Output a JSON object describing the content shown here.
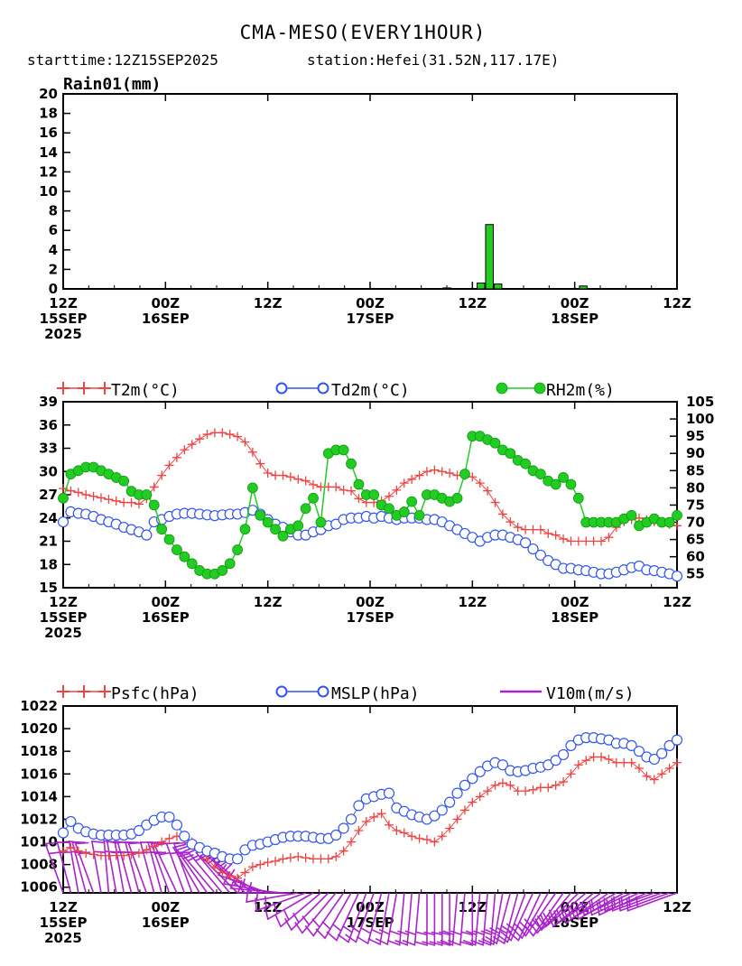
{
  "header": {
    "title": "CMA-MESO(EVERY1HOUR)",
    "starttime": "starttime:12Z15SEP2025",
    "station": "station:Hefei(31.52N,117.17E)"
  },
  "colors": {
    "rain": "#22cc22",
    "t2m": "#ee4444",
    "td2m": "#3355ee",
    "rh2m": "#22cc22",
    "psfc": "#ee4444",
    "mslp": "#3355ee",
    "wind": "#aa22cc"
  },
  "x_ticks": [
    {
      "hour": 0,
      "l1": "12Z",
      "l2": "15SEP",
      "l3": "2025"
    },
    {
      "hour": 12,
      "l1": "00Z",
      "l2": "16SEP",
      "l3": ""
    },
    {
      "hour": 24,
      "l1": "12Z",
      "l2": "",
      "l3": ""
    },
    {
      "hour": 36,
      "l1": "00Z",
      "l2": "17SEP",
      "l3": ""
    },
    {
      "hour": 48,
      "l1": "12Z",
      "l2": "",
      "l3": ""
    },
    {
      "hour": 60,
      "l1": "00Z",
      "l2": "18SEP",
      "l3": ""
    },
    {
      "hour": 72,
      "l1": "12Z",
      "l2": "",
      "l3": ""
    }
  ],
  "chart_data": [
    {
      "type": "bar",
      "title": "Rain01(mm)",
      "ylabel": "Rain01(mm)",
      "x_units": "hours since 12Z15SEP2025",
      "xlim": [
        0,
        72
      ],
      "ylim": [
        0,
        20
      ],
      "yticks": [
        0,
        2,
        4,
        6,
        8,
        10,
        12,
        14,
        16,
        18,
        20
      ],
      "x": [
        45,
        49,
        50,
        51,
        61
      ],
      "values": [
        0.1,
        0.6,
        6.6,
        0.5,
        0.3
      ]
    },
    {
      "type": "line",
      "x_units": "hours since 12Z15SEP2025",
      "xlim": [
        0,
        72
      ],
      "ylim_left": [
        15,
        39
      ],
      "yticks_left": [
        15,
        18,
        21,
        24,
        27,
        30,
        33,
        36,
        39
      ],
      "ylim_right": [
        51,
        105
      ],
      "yticks_right": [
        55,
        60,
        65,
        70,
        75,
        80,
        85,
        90,
        95,
        100,
        105
      ],
      "series": [
        {
          "name": "T2m(°C)",
          "axis": "left",
          "marker": "plus",
          "values": [
            27.8,
            27.5,
            27.3,
            27.0,
            26.8,
            26.6,
            26.4,
            26.2,
            26.0,
            26.0,
            25.8,
            26.5,
            28.0,
            29.5,
            30.8,
            31.8,
            32.8,
            33.5,
            34.2,
            34.8,
            35.0,
            35.0,
            34.8,
            34.5,
            33.8,
            32.5,
            31.0,
            29.8,
            29.5,
            29.5,
            29.3,
            29.0,
            28.8,
            28.3,
            28.0,
            28.0,
            28.0,
            27.6,
            27.5,
            26.5,
            26.0,
            26.0,
            26.2,
            26.8,
            27.6,
            28.5,
            29.0,
            29.5,
            30.0,
            30.2,
            30.0,
            29.8,
            29.5,
            29.5,
            29.3,
            28.5,
            27.5,
            26.0,
            24.5,
            23.5,
            22.8,
            22.5,
            22.5,
            22.5,
            22.0,
            21.8,
            21.3,
            21.0,
            21.0,
            21.0,
            21.0,
            21.0,
            21.5,
            22.8,
            23.5,
            23.8,
            24.0,
            23.8,
            23.5,
            23.5,
            23.2,
            23.0
          ]
        },
        {
          "name": "Td2m(°C)",
          "axis": "left",
          "marker": "circle",
          "values": [
            23.5,
            24.8,
            24.6,
            24.5,
            24.2,
            23.8,
            23.5,
            23.2,
            22.8,
            22.5,
            22.2,
            21.8,
            23.5,
            23.8,
            24.2,
            24.5,
            24.6,
            24.6,
            24.5,
            24.4,
            24.3,
            24.4,
            24.5,
            24.5,
            24.7,
            25.0,
            24.5,
            23.8,
            23.2,
            22.8,
            22.2,
            21.8,
            21.8,
            22.2,
            22.5,
            23.0,
            23.2,
            23.8,
            24.0,
            24.0,
            24.2,
            24.0,
            24.2,
            24.0,
            23.8,
            24.0,
            24.0,
            24.0,
            23.8,
            23.8,
            23.5,
            23.0,
            22.5,
            22.0,
            21.5,
            21.0,
            21.5,
            21.8,
            21.8,
            21.5,
            21.2,
            20.8,
            20.0,
            19.2,
            18.5,
            18.0,
            17.5,
            17.5,
            17.3,
            17.2,
            17.0,
            16.8,
            16.8,
            17.0,
            17.3,
            17.6,
            17.8,
            17.3,
            17.2,
            17.0,
            16.8,
            16.5
          ]
        },
        {
          "name": "RH2m(%)",
          "axis": "right",
          "marker": "dot",
          "values": [
            77,
            84,
            85,
            86,
            86,
            85,
            84,
            83,
            82,
            79,
            78,
            78,
            75,
            68,
            65,
            62,
            60,
            58,
            56,
            55,
            55,
            56,
            58,
            62,
            68,
            80,
            72,
            70,
            68,
            66,
            68,
            69,
            74,
            77,
            70,
            90,
            91,
            91,
            87,
            81,
            78,
            78,
            75,
            74,
            72,
            73,
            76,
            72,
            78,
            78,
            77,
            76,
            77,
            84,
            95,
            95,
            94,
            93,
            91,
            90,
            88,
            87,
            85,
            84,
            82,
            81,
            83,
            81,
            77,
            70,
            70,
            70,
            70,
            70,
            71,
            72,
            69,
            70,
            71,
            70,
            70,
            72
          ]
        }
      ]
    },
    {
      "type": "line",
      "x_units": "hours since 12Z15SEP2025",
      "xlim": [
        0,
        72
      ],
      "ylim": [
        1005.5,
        1022
      ],
      "yticks": [
        1006,
        1008,
        1010,
        1012,
        1014,
        1016,
        1018,
        1020,
        1022
      ],
      "series": [
        {
          "name": "Psfc(hPa)",
          "marker": "plus",
          "values": [
            1009.2,
            1009.5,
            1009.2,
            1009.0,
            1008.9,
            1008.8,
            1008.8,
            1008.8,
            1008.8,
            1008.9,
            1009.0,
            1009.3,
            1009.6,
            1010.0,
            1010.3,
            1010.5,
            1010.3,
            1010.0,
            1009.5,
            1008.5,
            1007.8,
            1007.3,
            1007.0,
            1006.8,
            1007.3,
            1007.8,
            1008.0,
            1008.2,
            1008.3,
            1008.5,
            1008.6,
            1008.7,
            1008.6,
            1008.5,
            1008.5,
            1008.5,
            1008.7,
            1009.2,
            1010.0,
            1011.0,
            1011.8,
            1012.2,
            1012.5,
            1011.5,
            1011.0,
            1010.8,
            1010.5,
            1010.3,
            1010.2,
            1010.0,
            1010.5,
            1011.2,
            1012.0,
            1012.8,
            1013.5,
            1014.0,
            1014.5,
            1015.0,
            1015.2,
            1015.0,
            1014.5,
            1014.5,
            1014.6,
            1014.8,
            1014.8,
            1015.0,
            1015.3,
            1016.0,
            1016.8,
            1017.2,
            1017.5,
            1017.5,
            1017.3,
            1017.0,
            1017.0,
            1017.0,
            1016.5,
            1015.8,
            1015.5,
            1016.0,
            1016.5,
            1017.0
          ]
        },
        {
          "name": "MSLP(hPa)",
          "marker": "circle",
          "values": [
            1010.8,
            1011.8,
            1011.2,
            1010.9,
            1010.7,
            1010.6,
            1010.6,
            1010.6,
            1010.6,
            1010.7,
            1011.0,
            1011.5,
            1011.9,
            1012.2,
            1012.2,
            1011.5,
            1010.5,
            1009.8,
            1009.5,
            1009.2,
            1009.0,
            1008.7,
            1008.5,
            1008.5,
            1009.3,
            1009.7,
            1009.8,
            1010.0,
            1010.2,
            1010.4,
            1010.5,
            1010.5,
            1010.5,
            1010.4,
            1010.3,
            1010.3,
            1010.6,
            1011.2,
            1012.0,
            1013.2,
            1013.8,
            1014.0,
            1014.2,
            1014.3,
            1013.0,
            1012.7,
            1012.4,
            1012.2,
            1012.0,
            1012.3,
            1012.8,
            1013.5,
            1014.3,
            1015.0,
            1015.6,
            1016.2,
            1016.7,
            1017.0,
            1016.8,
            1016.3,
            1016.2,
            1016.3,
            1016.5,
            1016.6,
            1016.8,
            1017.2,
            1017.7,
            1018.5,
            1019.0,
            1019.2,
            1019.2,
            1019.1,
            1019.0,
            1018.7,
            1018.7,
            1018.5,
            1018.0,
            1017.5,
            1017.3,
            1017.8,
            1018.5,
            1019.0
          ]
        },
        {
          "name": "V10m(m/s)",
          "marker": "barb",
          "direction_deg": [
            340,
            345,
            350,
            345,
            340,
            350,
            355,
            350,
            350,
            345,
            345,
            340,
            345,
            345,
            340,
            335,
            340,
            340,
            330,
            325,
            320,
            320,
            320,
            315,
            315,
            310,
            300,
            290,
            280,
            275,
            270,
            260,
            250,
            240,
            230,
            225,
            220,
            215,
            210,
            205,
            200,
            200,
            195,
            190,
            190,
            185,
            185,
            185,
            180,
            180,
            180,
            180,
            185,
            185,
            180,
            185,
            185,
            185,
            190,
            195,
            195,
            200,
            205,
            205,
            210,
            215,
            215,
            220,
            225,
            230,
            230,
            235,
            235,
            240,
            240,
            245,
            245,
            245,
            250,
            250,
            250,
            250
          ],
          "speed_ms": [
            4,
            4,
            4,
            4,
            4,
            4,
            4,
            4,
            4,
            4,
            4,
            4,
            4,
            4,
            4,
            4,
            4,
            4,
            4,
            4,
            4,
            4,
            4,
            4,
            4,
            4,
            4,
            4,
            4,
            4,
            4,
            4,
            4,
            4,
            4,
            4,
            4,
            4,
            4,
            4,
            4,
            4,
            4,
            4,
            4,
            4,
            4,
            4,
            4,
            4,
            4,
            4,
            4,
            4,
            4,
            4,
            4,
            4,
            4,
            4,
            4,
            4,
            4,
            4,
            4,
            4,
            4,
            4,
            4,
            4,
            4,
            4,
            4,
            4,
            4,
            4,
            4,
            4,
            4,
            4,
            4,
            4
          ]
        }
      ]
    }
  ]
}
